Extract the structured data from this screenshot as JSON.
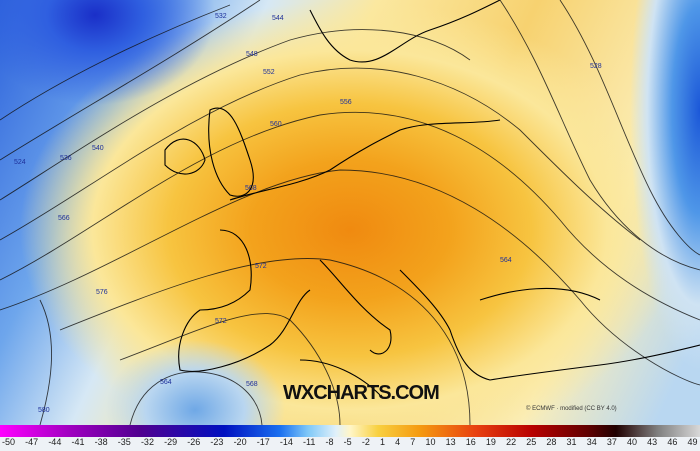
{
  "map": {
    "title": "",
    "contour_labels": [
      "532",
      "544",
      "548",
      "552",
      "556",
      "560",
      "564",
      "568",
      "572",
      "576",
      "580",
      "536",
      "540",
      "524",
      "528",
      "566",
      "564",
      "572",
      "568"
    ],
    "colors": {
      "low": "#1a2fc8",
      "high": "#f08a10",
      "contour": "#111111",
      "label": "#1d2f9a"
    }
  },
  "branding": {
    "watermark": "WXCHARTS.COM",
    "credit": "© ECMWF · modified (CC BY 4.0)"
  },
  "colorbar": {
    "ticks": [
      "-50",
      "-47",
      "-44",
      "-41",
      "-38",
      "-35",
      "-32",
      "-29",
      "-26",
      "-23",
      "-20",
      "-17",
      "-14",
      "-11",
      "-8",
      "-5",
      "-2",
      "1",
      "4",
      "7",
      "10",
      "13",
      "16",
      "19",
      "22",
      "25",
      "28",
      "31",
      "34",
      "37",
      "40",
      "43",
      "46",
      "49"
    ]
  }
}
